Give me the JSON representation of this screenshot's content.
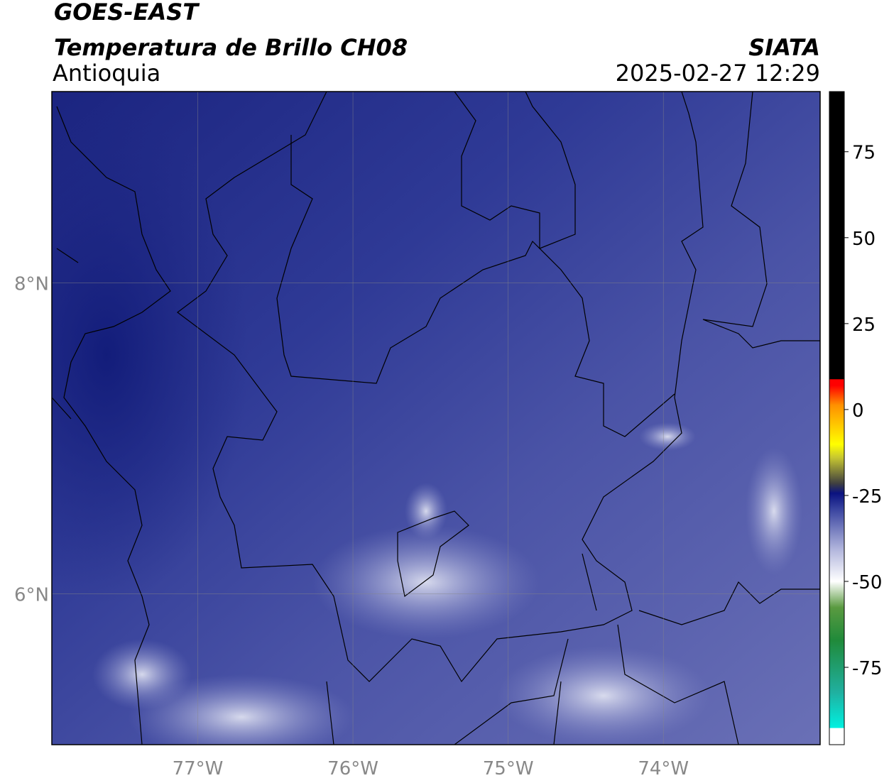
{
  "header": {
    "title": "GOES-EAST",
    "subtitle": "Temperatura de Brillo CH08",
    "region": "Antioquia",
    "source": "SIATA",
    "datetime": "2025-02-27 12:29"
  },
  "map": {
    "xlim": [
      -77.94,
      -72.99
    ],
    "ylim": [
      5.03,
      9.23
    ],
    "xticks": [
      {
        "value": -77,
        "label": "77°W"
      },
      {
        "value": -76,
        "label": "76°W"
      },
      {
        "value": -75,
        "label": "75°W"
      },
      {
        "value": -74,
        "label": "74°W"
      }
    ],
    "yticks": [
      {
        "value": 8,
        "label": "8°N"
      },
      {
        "value": 6,
        "label": "6°N"
      }
    ],
    "grid": true
  },
  "colorbar": {
    "lim": [
      -97.5,
      92.5
    ],
    "ticks": [
      75,
      50,
      25,
      0,
      -25,
      -50,
      -75
    ]
  }
}
